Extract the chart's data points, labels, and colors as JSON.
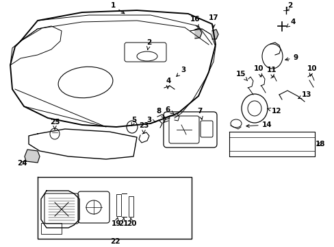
{
  "bg_color": "#ffffff",
  "line_color": "#000000",
  "figsize": [
    4.89,
    3.6
  ],
  "dpi": 100,
  "font_size": 7.5
}
